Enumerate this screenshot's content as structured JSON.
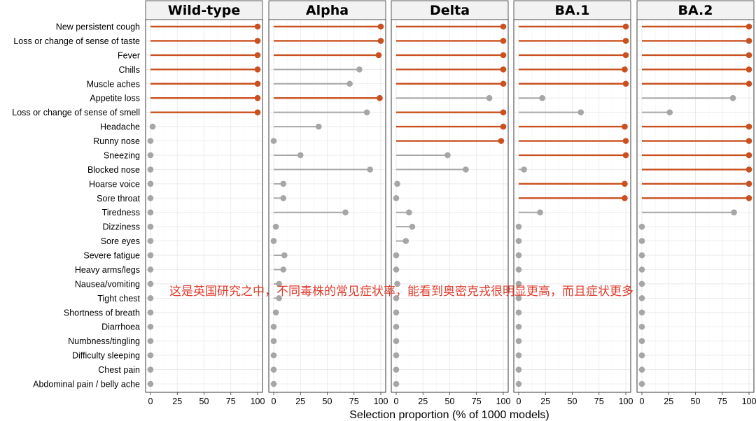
{
  "chart_data": {
    "type": "lollipop",
    "xlabel": "Selection proportion (% of 1000 models)",
    "x_ticks": [
      0,
      25,
      50,
      75,
      100
    ],
    "xlim": [
      0,
      100
    ],
    "colors": {
      "highlight": "#c9501f",
      "normal": "#a6a6a6"
    },
    "highlight_threshold": 95,
    "symptoms": [
      "New persistent cough",
      "Loss or change of sense of taste",
      "Fever",
      "Chills",
      "Muscle aches",
      "Appetite loss",
      "Loss or change of sense of smell",
      "Headache",
      "Runny nose",
      "Sneezing",
      "Blocked nose",
      "Hoarse voice",
      "Sore throat",
      "Tiredness",
      "Dizziness",
      "Sore eyes",
      "Severe fatigue",
      "Heavy arms/legs",
      "Nausea/vomiting",
      "Tight chest",
      "Shortness of breath",
      "Diarrhoea",
      "Numbness/tingling",
      "Difficulty sleeping",
      "Chest pain",
      "Abdominal pain / belly ache"
    ],
    "series": [
      {
        "name": "Wild-type",
        "values": [
          100,
          100,
          100,
          100,
          100,
          100,
          100,
          2,
          0,
          0,
          0,
          0,
          0,
          0,
          0,
          0,
          0,
          0,
          0,
          0,
          0,
          0,
          0,
          0,
          0,
          0
        ]
      },
      {
        "name": "Alpha",
        "values": [
          100,
          100,
          98,
          80,
          71,
          99,
          87,
          42,
          0,
          25,
          90,
          9,
          9,
          67,
          2,
          0,
          10,
          9,
          5,
          5,
          2,
          0,
          0,
          0,
          0,
          0
        ]
      },
      {
        "name": "Delta",
        "values": [
          100,
          100,
          100,
          100,
          100,
          87,
          100,
          100,
          98,
          48,
          65,
          1,
          0,
          12,
          15,
          9,
          0,
          0,
          1,
          0,
          0,
          0,
          0,
          0,
          0,
          0
        ]
      },
      {
        "name": "BA.1",
        "values": [
          100,
          100,
          100,
          99,
          100,
          22,
          58,
          99,
          100,
          100,
          5,
          99,
          99,
          20,
          0,
          0,
          0,
          0,
          0,
          0,
          0,
          0,
          0,
          0,
          0,
          0
        ]
      },
      {
        "name": "BA.2",
        "values": [
          100,
          100,
          100,
          100,
          100,
          85,
          26,
          100,
          100,
          100,
          100,
          100,
          100,
          86,
          0,
          0,
          0,
          0,
          0,
          0,
          0,
          0,
          0,
          0,
          0,
          0
        ]
      }
    ]
  },
  "annotation": "这是英国研究之中，不同毒株的常见症状率，能看到奥密克戎很明显更高，而且症状更多"
}
